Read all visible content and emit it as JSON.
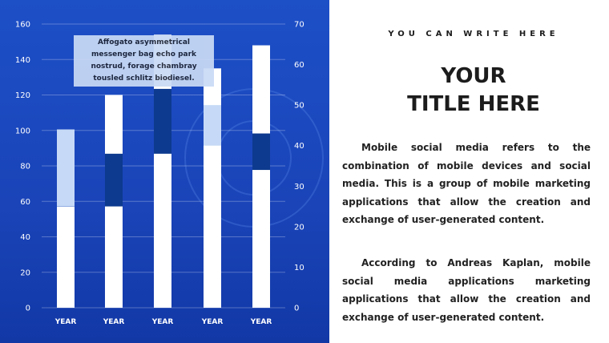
{
  "note": {
    "text": "Affogato asymmetrical messenger bag echo park nostrud, forage chambray tousled schlitz biodiesel."
  },
  "slide": {
    "kicker": "YOU CAN WRITE HERE",
    "title_line1": "YOUR",
    "title_line2": "TITLE HERE",
    "paragraph1": "Mobile social media refers to the combination of mobile devices and social media. This is a group of mobile marketing applications that allow the creation and exchange of user-generated content.",
    "paragraph2": "According to Andreas Kaplan, mobile social media applications marketing applications that allow the creation and exchange of user-generated content."
  },
  "colors": {
    "panel": "#1a44b8",
    "bar": "#ffffff",
    "range_light": "#c6d9f6",
    "range_dark": "#0d3a8e"
  },
  "chart_data": {
    "type": "bar",
    "categories": [
      "YEAR",
      "YEAR",
      "YEAR",
      "YEAR",
      "YEAR"
    ],
    "series": [
      {
        "values": [
          57,
          120,
          154,
          135,
          148
        ]
      },
      {
        "values": [
          [
            25,
            44
          ],
          [
            25,
            38
          ],
          [
            38,
            54
          ],
          [
            40,
            50
          ],
          [
            34,
            43
          ]
        ]
      }
    ],
    "y_left": {
      "ylim": [
        0,
        160
      ],
      "ticks": [
        "0",
        "20",
        "40",
        "60",
        "80",
        "100",
        "120",
        "140",
        "160"
      ]
    },
    "y_right": {
      "ylim": [
        0,
        70
      ],
      "ticks": [
        "0",
        "10",
        "20",
        "30",
        "40",
        "50",
        "60",
        "70"
      ]
    },
    "range_styles": [
      "light",
      "dark",
      "dark",
      "light",
      "dark"
    ],
    "grid": true
  }
}
